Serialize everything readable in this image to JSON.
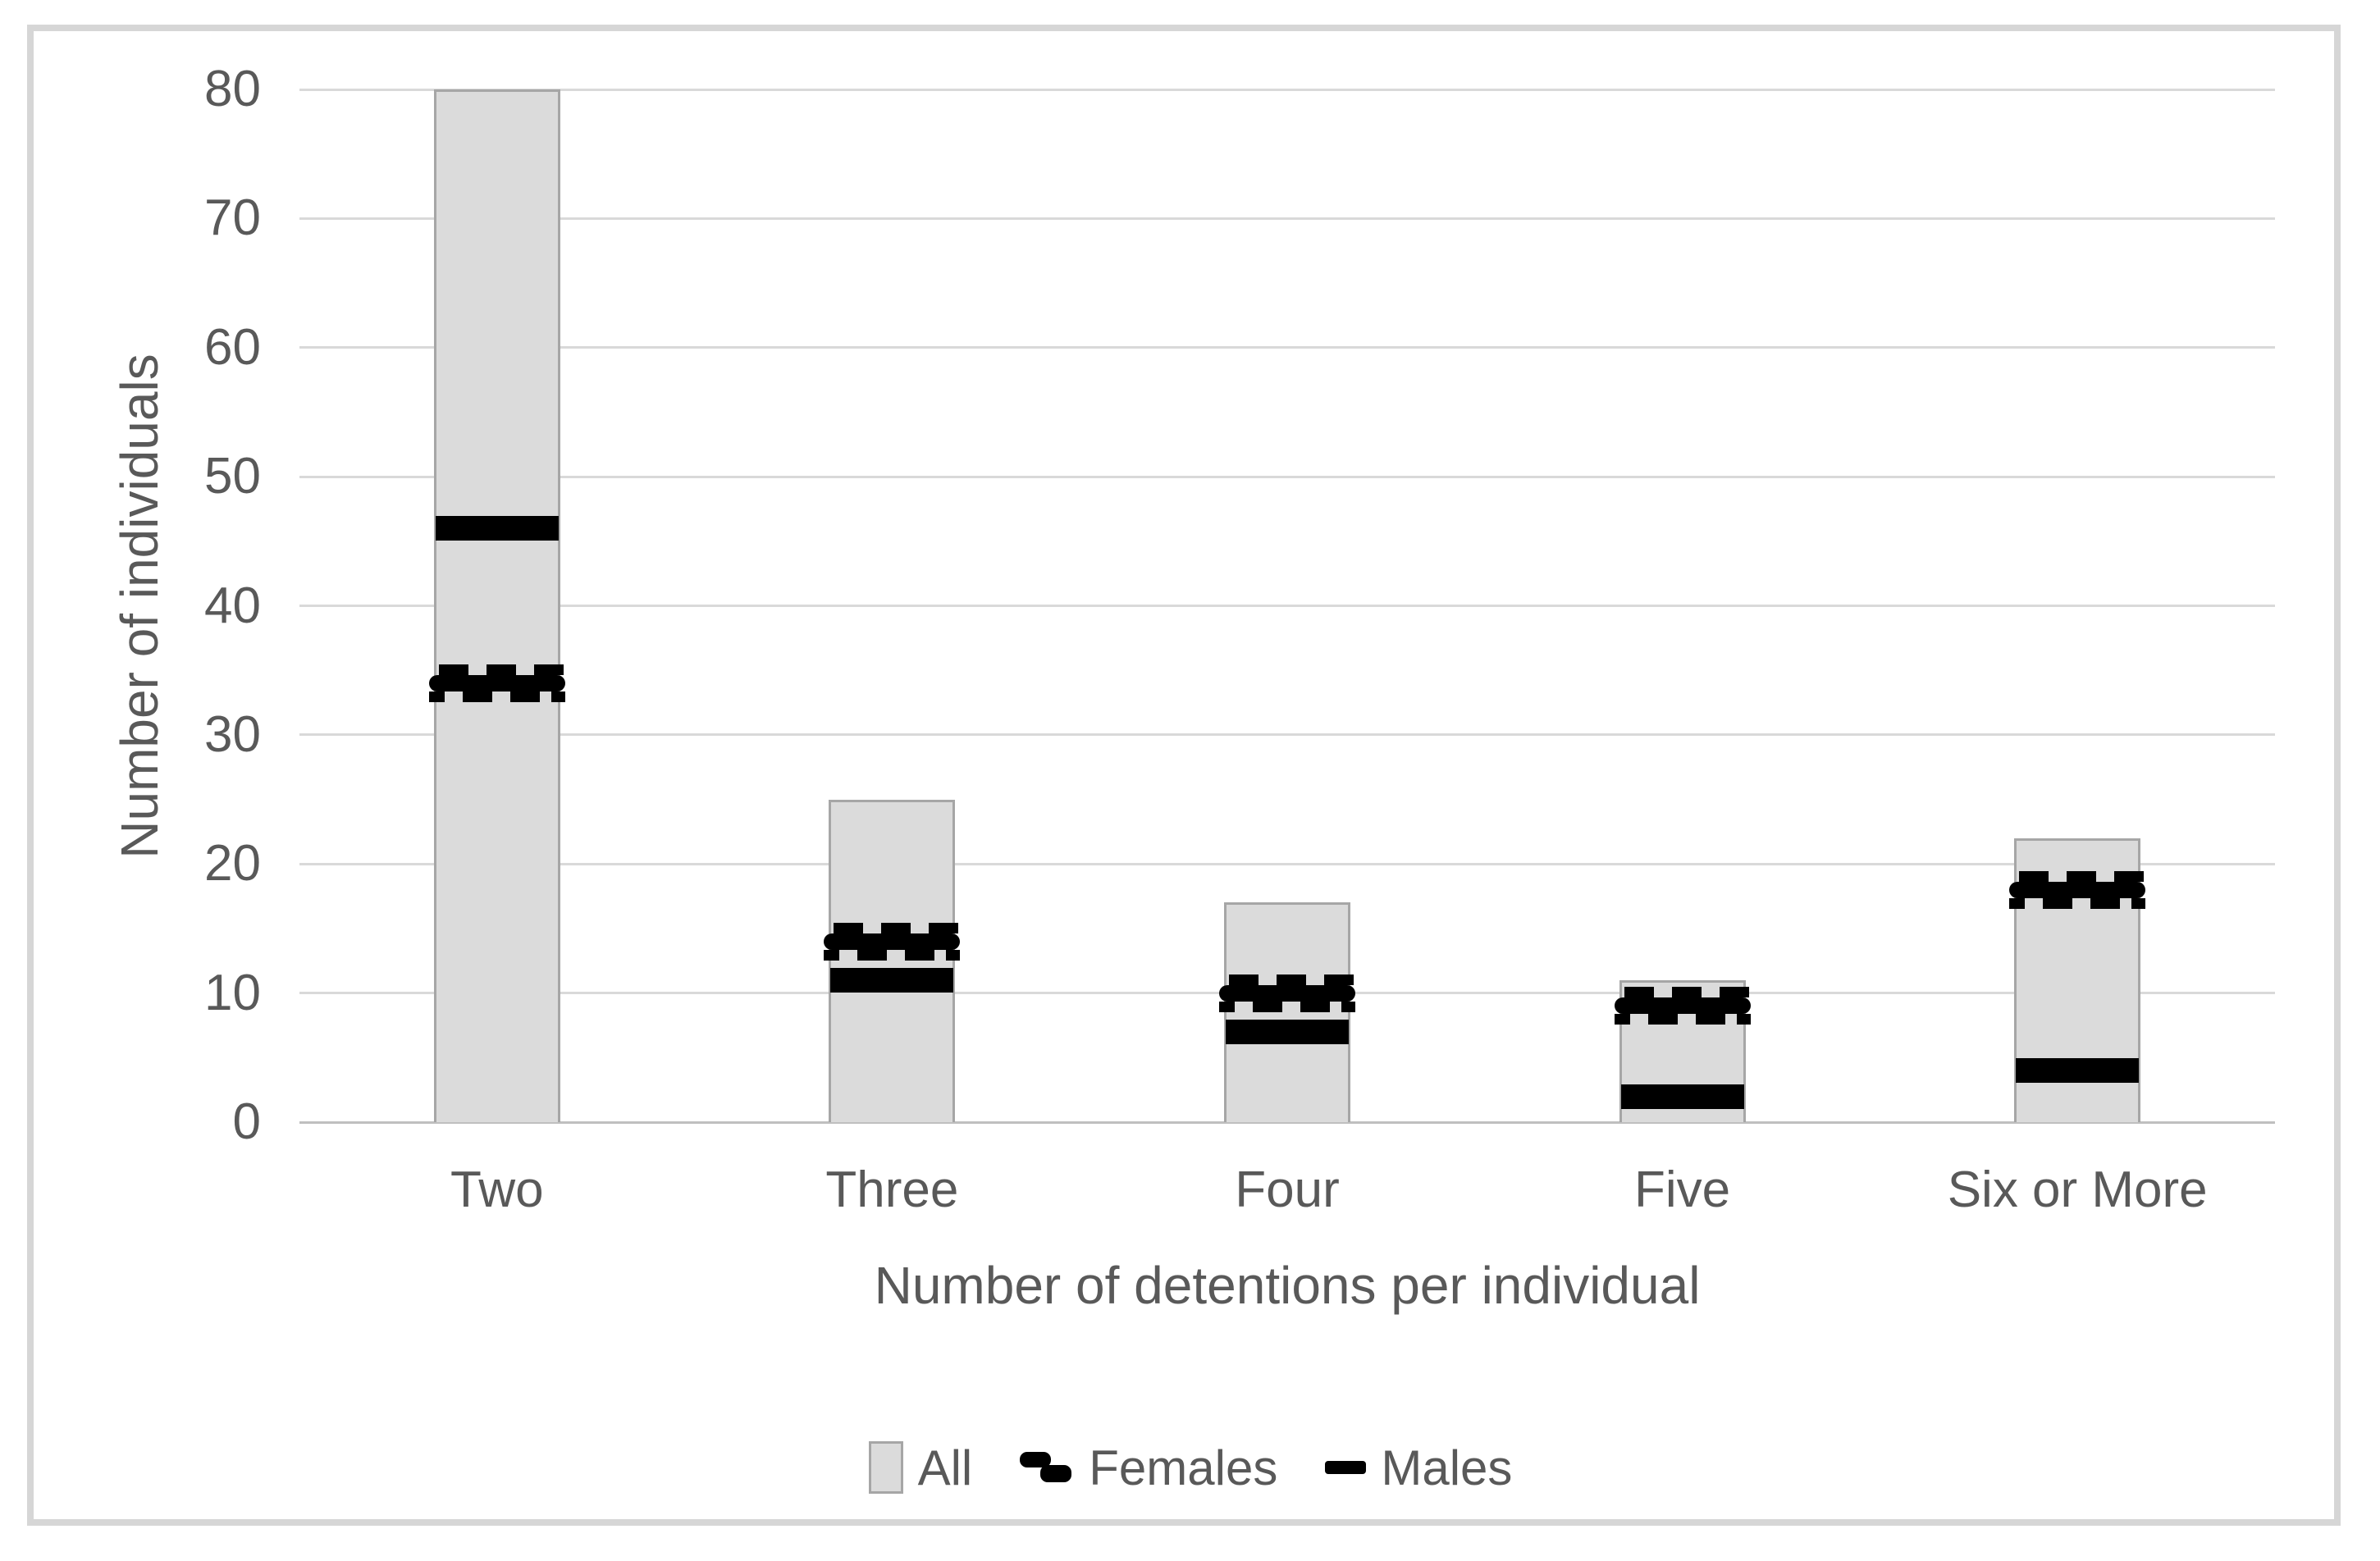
{
  "chart_data": {
    "type": "bar",
    "title": "",
    "categories": [
      "Two",
      "Three",
      "Four",
      "Five",
      "Six or More"
    ],
    "series": [
      {
        "name": "All",
        "type": "bar",
        "values": [
          80,
          25,
          17,
          11,
          22
        ]
      },
      {
        "name": "Females",
        "type": "dashed-marker",
        "values": [
          34,
          14,
          10,
          9,
          18
        ]
      },
      {
        "name": "Males",
        "type": "solid-marker",
        "values": [
          46,
          11,
          7,
          2,
          4
        ]
      }
    ],
    "xlabel": "Number of detentions per individual",
    "ylabel": "Number of individuals",
    "ylim": [
      0,
      80
    ],
    "yticks": [
      0,
      10,
      20,
      30,
      40,
      50,
      60,
      70,
      80
    ],
    "grid": true,
    "legend_position": "bottom",
    "colors": {
      "bar_fill": "#dbdbdb",
      "bar_border": "#a6a6a6",
      "marker": "#000000",
      "gridline": "#d9d9d9",
      "axis_line": "#bfbfbf",
      "text": "#595959",
      "frame_border": "#d6d6d6",
      "background": "#ffffff"
    }
  }
}
